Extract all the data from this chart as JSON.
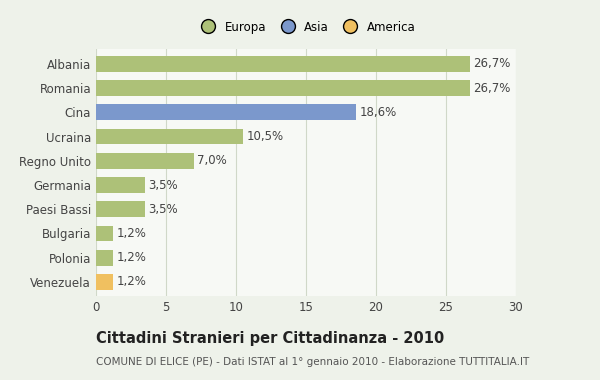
{
  "categories": [
    "Albania",
    "Romania",
    "Cina",
    "Ucraina",
    "Regno Unito",
    "Germania",
    "Paesi Bassi",
    "Bulgaria",
    "Polonia",
    "Venezuela"
  ],
  "values": [
    26.7,
    26.7,
    18.6,
    10.5,
    7.0,
    3.5,
    3.5,
    1.2,
    1.2,
    1.2
  ],
  "labels": [
    "26,7%",
    "26,7%",
    "18,6%",
    "10,5%",
    "7,0%",
    "3,5%",
    "3,5%",
    "1,2%",
    "1,2%",
    "1,2%"
  ],
  "colors": [
    "#adc178",
    "#adc178",
    "#7b98cc",
    "#adc178",
    "#adc178",
    "#adc178",
    "#adc178",
    "#adc178",
    "#adc178",
    "#f0c060"
  ],
  "legend_labels": [
    "Europa",
    "Asia",
    "America"
  ],
  "legend_colors": [
    "#adc178",
    "#7b98cc",
    "#f0c060"
  ],
  "title": "Cittadini Stranieri per Cittadinanza - 2010",
  "subtitle": "COMUNE DI ELICE (PE) - Dati ISTAT al 1° gennaio 2010 - Elaborazione TUTTITALIA.IT",
  "xlim": [
    0,
    30
  ],
  "xticks": [
    0,
    5,
    10,
    15,
    20,
    25,
    30
  ],
  "bg_color": "#eef2ea",
  "plot_bg_color": "#f7f9f5",
  "grid_color": "#d0d8c8",
  "bar_height": 0.65,
  "label_fontsize": 8.5,
  "ytick_fontsize": 8.5,
  "xtick_fontsize": 8.5,
  "title_fontsize": 10.5,
  "subtitle_fontsize": 7.5,
  "label_color": "#444444",
  "title_color": "#222222",
  "subtitle_color": "#555555"
}
